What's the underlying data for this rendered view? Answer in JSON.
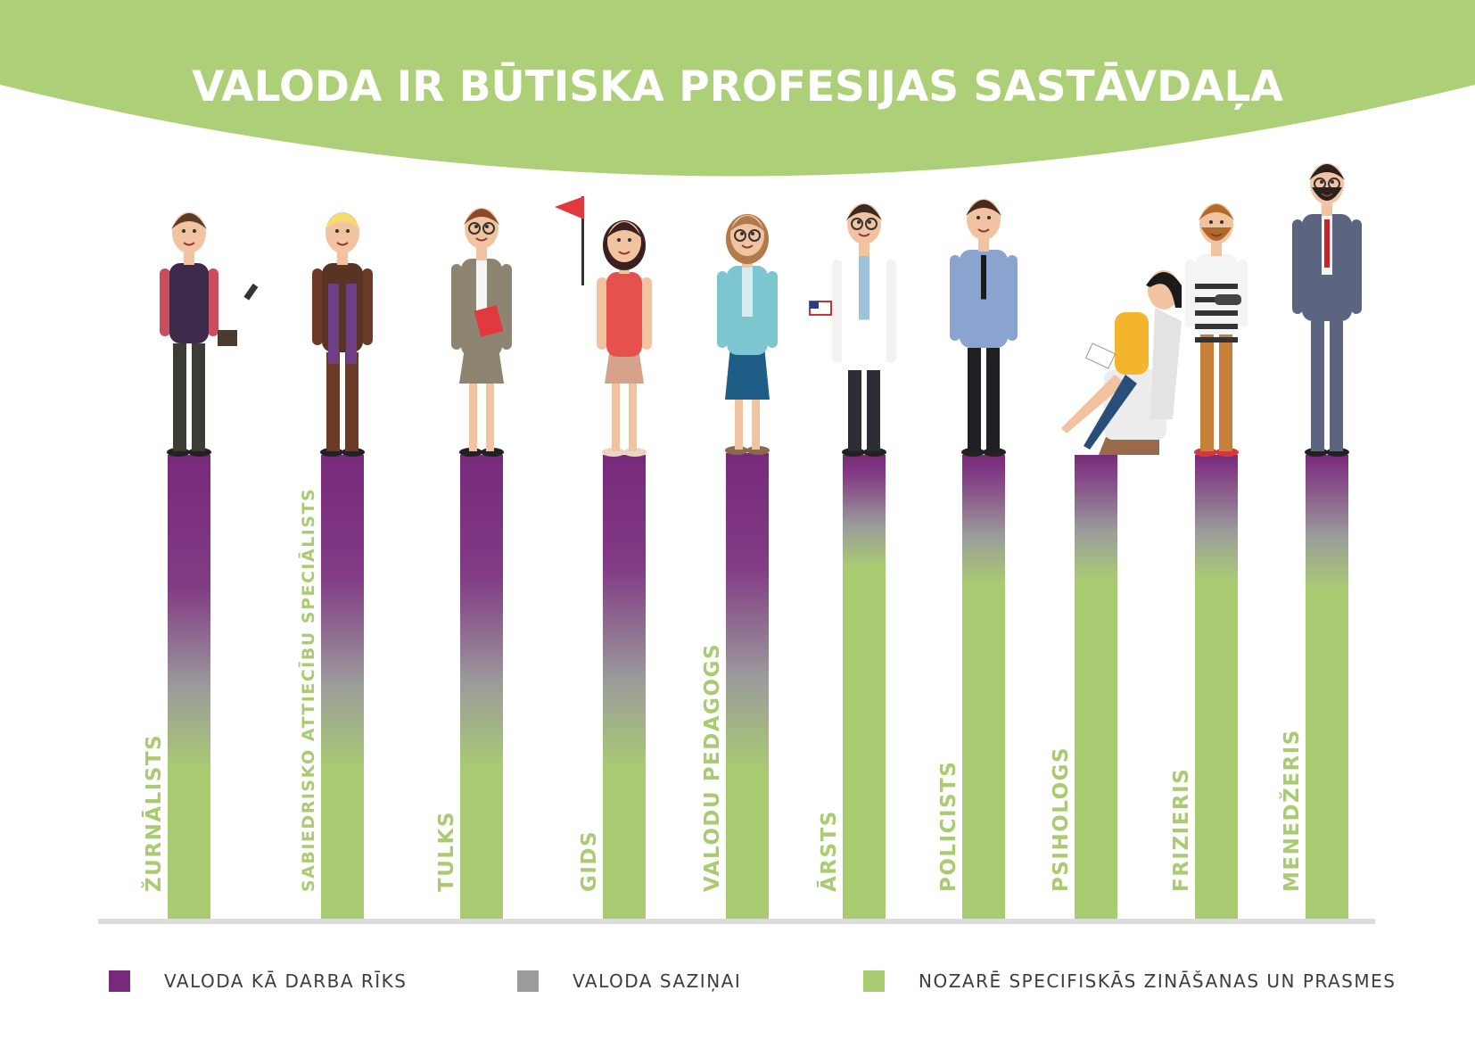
{
  "title": "VALODA IR BŪTISKA PROFESIJAS SASTĀVDAĻA",
  "colors": {
    "header_green": "#adcf77",
    "purple": "#772a7a",
    "gray": "#9b9b9b",
    "green": "#a9cb72",
    "axis": "#dcdcdc"
  },
  "chart_data": {
    "type": "bar",
    "categories": [
      "ŽURNĀLISTS",
      "SABIEDRISKO ATTIECĪBU SPECIĀLISTS",
      "TULKS",
      "GIDS",
      "VALODU PEDAGOGS",
      "ĀRSTS",
      "POLICISTS",
      "PSIHOLOGS",
      "FRIZIERIS",
      "MENEDŽERIS"
    ],
    "series": [
      {
        "name": "VALODA KĀ DARBA RĪKS",
        "values": [
          0.28,
          0.26,
          0.26,
          0.24,
          0.24,
          0.04,
          0.04,
          0.03,
          0.03,
          0.03
        ]
      },
      {
        "name": "VALODA SAZIŅAI",
        "values": [
          0.4,
          0.42,
          0.42,
          0.44,
          0.44,
          0.2,
          0.24,
          0.24,
          0.24,
          0.26
        ]
      },
      {
        "name": "NOZARĒ SPECIFISKĀS ZINĀŠANAS UN PRASMES",
        "values": [
          0.32,
          0.32,
          0.32,
          0.32,
          0.32,
          0.76,
          0.72,
          0.73,
          0.73,
          0.71
        ]
      }
    ],
    "stacking": "gradient blend from top (purple) to bottom (green)",
    "legend_position": "bottom",
    "grid": false
  },
  "figures": [
    "journalist-with-microphone",
    "pr-specialist-with-scarf",
    "translator-with-folder",
    "tour-guide-with-flag",
    "language-teacher",
    "doctor-with-flag",
    "police-officer",
    "psychologist-in-chair",
    "hairdresser-with-hairdryer",
    "manager-in-suit"
  ]
}
